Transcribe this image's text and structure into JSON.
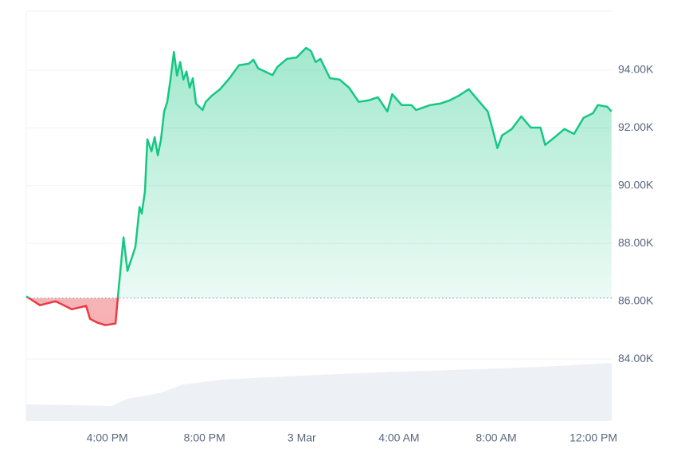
{
  "chart_data": {
    "type": "line",
    "x": [
      12.67,
      13.23,
      13.88,
      14.54,
      15.13,
      15.29,
      15.59,
      15.92,
      16.34,
      16.44,
      16.67,
      16.83,
      17.16,
      17.33,
      17.42,
      17.55,
      17.65,
      17.82,
      17.95,
      18.08,
      18.21,
      18.34,
      18.47,
      18.6,
      18.74,
      18.87,
      19.0,
      19.13,
      19.26,
      19.39,
      19.52,
      19.65,
      19.92,
      20.05,
      20.31,
      20.64,
      21.03,
      21.42,
      21.82,
      22.01,
      22.21,
      22.8,
      23.0,
      23.39,
      23.79,
      24.18,
      24.38,
      24.57,
      24.77,
      25.16,
      25.56,
      25.95,
      26.34,
      26.74,
      27.13,
      27.52,
      27.72,
      28.11,
      28.51,
      28.7,
      29.29,
      29.69,
      30.08,
      30.47,
      30.87,
      31.26,
      31.65,
      31.85,
      32.05,
      32.24,
      32.64,
      33.03,
      33.42,
      33.82,
      34.01,
      34.41,
      34.8,
      35.2,
      35.59,
      35.98,
      36.18,
      36.57,
      36.74
    ],
    "series": [
      {
        "color": "#16c784",
        "values": [
          86170,
          85860,
          86000,
          85720,
          85840,
          85390,
          85260,
          85170,
          85230,
          86170,
          88210,
          87050,
          87880,
          89260,
          89040,
          89810,
          91600,
          91190,
          91680,
          91050,
          91600,
          92570,
          92900,
          93670,
          94630,
          93810,
          94280,
          93670,
          93950,
          93390,
          93720,
          92840,
          92620,
          92900,
          93120,
          93340,
          93720,
          94170,
          94220,
          94360,
          94060,
          93830,
          94110,
          94390,
          94440,
          94770,
          94660,
          94280,
          94390,
          93720,
          93670,
          93390,
          92900,
          92950,
          93060,
          92570,
          93170,
          92790,
          92790,
          92620,
          92790,
          92840,
          92950,
          93120,
          93340,
          92950,
          92570,
          91960,
          91300,
          91740,
          91960,
          92400,
          92010,
          92010,
          91410,
          91680,
          91960,
          91790,
          92350,
          92510,
          92790,
          92730,
          92570
        ]
      }
    ],
    "reference_value": 86110,
    "below_color": "#ea3943",
    "xlim": [
      12.67,
      36.75
    ],
    "xticks": [
      {
        "value": 16,
        "label": "4:00 PM"
      },
      {
        "value": 20,
        "label": "8:00 PM"
      },
      {
        "value": 24,
        "label": "3 Mar"
      },
      {
        "value": 28,
        "label": "4:00 AM"
      },
      {
        "value": 32,
        "label": "8:00 AM"
      },
      {
        "value": 36,
        "label": "12:00 PM"
      }
    ],
    "ylim": [
      81850,
      96040
    ],
    "yticks": [
      {
        "value": 84000,
        "label": "84.00K"
      },
      {
        "value": 86000,
        "label": "86.00K"
      },
      {
        "value": 88000,
        "label": "88.00K"
      },
      {
        "value": 90000,
        "label": "90.00K"
      },
      {
        "value": 92000,
        "label": "92.00K"
      },
      {
        "value": 94000,
        "label": "94.00K"
      }
    ],
    "grid": true
  }
}
